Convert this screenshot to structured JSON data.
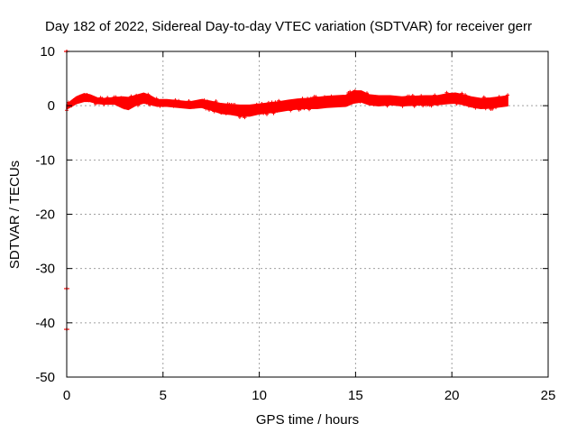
{
  "chart_data": {
    "type": "scatter",
    "title": "Day 182 of 2022, Sidereal Day-to-day VTEC variation (SDTVAR) for receiver gerr",
    "xlabel": "GPS time / hours",
    "ylabel": "SDTVAR / TECUs",
    "xlim": [
      0,
      25
    ],
    "ylim": [
      -50,
      10
    ],
    "xticks": [
      "0",
      "5",
      "10",
      "15",
      "20",
      "25"
    ],
    "yticks": [
      "10",
      "0",
      "-10",
      "-20",
      "-30",
      "-40",
      "-50"
    ],
    "grid": true,
    "series_color": "#ff0000",
    "band": {
      "t": [
        0.0,
        0.2,
        0.5,
        0.9,
        1.2,
        1.6,
        2.0,
        2.5,
        2.9,
        3.2,
        3.6,
        4.0,
        4.3,
        4.7,
        5.2,
        5.8,
        6.4,
        7.0,
        7.5,
        8.0,
        8.5,
        9.0,
        9.5,
        10.0,
        10.5,
        11.0,
        11.5,
        12.0,
        12.5,
        13.0,
        13.5,
        14.0,
        14.5,
        14.9,
        15.3,
        15.7,
        16.2,
        16.8,
        17.4,
        18.0,
        18.6,
        19.2,
        19.8,
        20.2,
        20.6,
        21.0,
        21.5,
        22.0,
        22.5,
        22.9
      ],
      "center": [
        -0.2,
        0.3,
        1.0,
        1.5,
        1.4,
        0.9,
        0.8,
        0.9,
        0.6,
        0.4,
        1.0,
        1.4,
        1.1,
        0.5,
        0.5,
        0.3,
        0.1,
        0.4,
        0.0,
        -0.5,
        -0.7,
        -0.9,
        -0.9,
        -0.6,
        -0.4,
        -0.2,
        0.1,
        0.3,
        0.4,
        0.5,
        0.7,
        0.8,
        0.9,
        1.6,
        1.7,
        1.1,
        0.9,
        1.0,
        0.8,
        0.9,
        1.0,
        1.0,
        1.3,
        1.4,
        1.1,
        0.7,
        0.4,
        0.5,
        0.7,
        0.9
      ],
      "halfwidth": [
        0.4,
        0.5,
        0.6,
        0.7,
        0.6,
        0.5,
        0.5,
        0.6,
        1.0,
        1.1,
        0.9,
        0.9,
        0.8,
        0.6,
        0.6,
        0.6,
        0.6,
        0.7,
        0.8,
        0.9,
        0.9,
        1.0,
        1.0,
        0.9,
        0.9,
        0.9,
        0.9,
        0.9,
        0.9,
        1.0,
        1.0,
        1.0,
        1.0,
        1.1,
        1.0,
        0.9,
        0.9,
        0.8,
        0.8,
        0.8,
        0.8,
        0.8,
        0.9,
        0.9,
        0.9,
        0.9,
        0.9,
        0.9,
        0.9,
        0.9
      ]
    },
    "outliers": [
      {
        "x": 0.0,
        "y": 10.0
      },
      {
        "x": 0.0,
        "y": -33.7
      },
      {
        "x": 0.0,
        "y": -41.2
      }
    ]
  }
}
